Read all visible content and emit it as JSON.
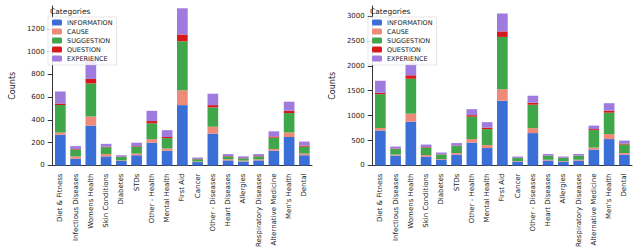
{
  "chart_data": [
    {
      "type": "bar",
      "stacked": true,
      "grid": false,
      "legend": "upper left",
      "legend_title": "Categories",
      "y_label": "Counts",
      "categories": [
        "Diet & Fitness",
        "Infectious Diseases",
        "Womens Health",
        "Skin Conditions",
        "Diabetes",
        "STDs",
        "Other - Health",
        "Mental Health",
        "First Aid",
        "Cancer",
        "Other - Diseases",
        "Heart Diseases",
        "Allergies",
        "Respiratory Diseases",
        "Alternative Medicine",
        "Men's Health",
        "Dental"
      ],
      "ylim": [
        0,
        1400
      ],
      "yticks": [
        0,
        200,
        400,
        600,
        800,
        1000,
        1200
      ],
      "series": [
        {
          "name": "INFORMATION",
          "color": "#3a6fd8",
          "values": [
            270,
            60,
            350,
            80,
            40,
            90,
            200,
            130,
            530,
            30,
            280,
            45,
            35,
            45,
            130,
            250,
            90
          ]
        },
        {
          "name": "CAUSE",
          "color": "#f08a78",
          "values": [
            20,
            20,
            80,
            20,
            5,
            15,
            30,
            20,
            130,
            5,
            60,
            10,
            8,
            8,
            15,
            40,
            15
          ]
        },
        {
          "name": "SUGGESTION",
          "color": "#3fa64a",
          "values": [
            240,
            60,
            290,
            60,
            30,
            60,
            140,
            90,
            430,
            20,
            170,
            25,
            20,
            27,
            100,
            170,
            60
          ]
        },
        {
          "name": "QUESTION",
          "color": "#d7191c",
          "values": [
            15,
            5,
            40,
            5,
            3,
            5,
            20,
            10,
            60,
            3,
            20,
            3,
            2,
            3,
            10,
            20,
            10
          ]
        },
        {
          "name": "EXPERIENCE",
          "color": "#9f7be0",
          "values": [
            105,
            25,
            180,
            25,
            12,
            30,
            90,
            60,
            230,
            12,
            100,
            17,
            15,
            17,
            45,
            80,
            35
          ]
        }
      ]
    },
    {
      "type": "bar",
      "stacked": true,
      "grid": false,
      "legend": "upper left",
      "legend_title": "Categories",
      "y_label": "Counts",
      "categories": [
        "Diet & Fitness",
        "Infectious Diseases",
        "Womens Health",
        "Skin Conditions",
        "Diabetes",
        "STDs",
        "Other - Health",
        "Mental Health",
        "First Aid",
        "Cancer",
        "Other - Diseases",
        "Heart Diseases",
        "Allergies",
        "Respiratory Diseases",
        "Alternative Medicine",
        "Men's Health",
        "Dental"
      ],
      "ylim": [
        0,
        3200
      ],
      "yticks": [
        0,
        500,
        1000,
        1500,
        2000,
        2500,
        3000
      ],
      "series": [
        {
          "name": "INFORMATION",
          "color": "#3a6fd8",
          "values": [
            700,
            200,
            880,
            180,
            120,
            220,
            460,
            350,
            1300,
            80,
            650,
            100,
            80,
            100,
            320,
            530,
            220
          ]
        },
        {
          "name": "CAUSE",
          "color": "#f08a78",
          "values": [
            50,
            20,
            160,
            30,
            10,
            30,
            70,
            60,
            230,
            10,
            100,
            15,
            10,
            15,
            40,
            100,
            30
          ]
        },
        {
          "name": "SUGGESTION",
          "color": "#3fa64a",
          "values": [
            680,
            110,
            700,
            150,
            90,
            140,
            450,
            320,
            1050,
            60,
            470,
            80,
            60,
            80,
            350,
            430,
            170
          ]
        },
        {
          "name": "QUESTION",
          "color": "#d7191c",
          "values": [
            30,
            10,
            70,
            10,
            5,
            10,
            30,
            30,
            110,
            5,
            40,
            5,
            5,
            5,
            20,
            40,
            20
          ]
        },
        {
          "name": "EXPERIENCE",
          "color": "#9f7be0",
          "values": [
            240,
            40,
            240,
            50,
            35,
            50,
            120,
            110,
            360,
            25,
            140,
            30,
            25,
            30,
            70,
            150,
            60
          ]
        }
      ]
    }
  ]
}
